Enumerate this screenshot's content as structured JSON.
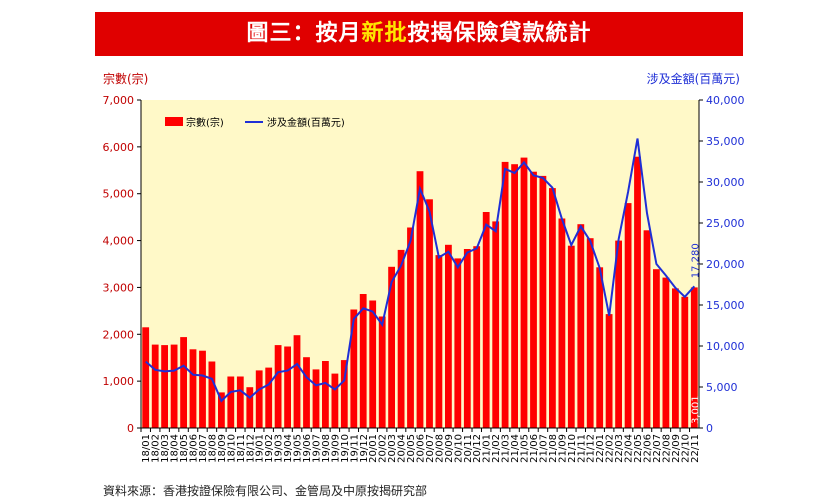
{
  "header": {
    "title_prefix": "圖三：按月",
    "title_highlight": "新批",
    "title_suffix": "按揭保險貸款統計"
  },
  "source": "資料來源：香港按證保險有限公司、金管局及中原按揭研究部",
  "colors": {
    "banner": "#e00000",
    "highlight": "#ffe600",
    "plot_bg": "#fff9c8",
    "bar": "#ff0000",
    "line": "#1f2fd6",
    "left_axis_text": "#c00000",
    "right_axis_text": "#1f2fd6"
  },
  "chart_data": {
    "type": "bar",
    "ylabel": "宗數(宗)",
    "y2label": "涉及金額(百萬元)",
    "ylim": [
      0,
      7000
    ],
    "y2lim": [
      0,
      40000
    ],
    "yticks": [
      "0",
      "1,000",
      "2,000",
      "3,000",
      "4,000",
      "5,000",
      "6,000",
      "7,000"
    ],
    "y2ticks": [
      "0",
      "5,000",
      "10,000",
      "15,000",
      "20,000",
      "25,000",
      "30,000",
      "35,000",
      "40,000"
    ],
    "legend_position": "top-left",
    "grid": false,
    "categories": [
      "18/01",
      "18/02",
      "18/03",
      "18/04",
      "18/05",
      "18/06",
      "18/07",
      "18/08",
      "18/09",
      "18/10",
      "18/11",
      "18/12",
      "19/01",
      "19/02",
      "19/03",
      "19/04",
      "19/05",
      "19/06",
      "19/07",
      "19/08",
      "19/09",
      "19/10",
      "19/11",
      "19/12",
      "20/01",
      "20/02",
      "20/03",
      "20/04",
      "20/05",
      "20/06",
      "20/07",
      "20/08",
      "20/09",
      "20/10",
      "20/11",
      "20/12",
      "21/01",
      "21/02",
      "21/03",
      "21/04",
      "21/05",
      "21/06",
      "21/07",
      "21/08",
      "21/09",
      "21/10",
      "21/11",
      "21/12",
      "22/01",
      "22/02",
      "22/03",
      "22/04",
      "22/05",
      "22/06",
      "22/07",
      "22/08",
      "22/09",
      "22/10",
      "22/11"
    ],
    "series": [
      {
        "name": "宗數(宗)",
        "type": "bar",
        "axis": "left",
        "values": [
          2150,
          1780,
          1770,
          1780,
          1940,
          1680,
          1650,
          1420,
          760,
          1100,
          1100,
          870,
          1230,
          1290,
          1770,
          1740,
          1980,
          1510,
          1250,
          1430,
          1160,
          1450,
          2530,
          2860,
          2720,
          2380,
          3440,
          3800,
          4280,
          5480,
          4880,
          3690,
          3910,
          3620,
          3820,
          3880,
          4610,
          4410,
          5680,
          5630,
          5770,
          5470,
          5380,
          5120,
          4470,
          3890,
          4350,
          4050,
          3430,
          2430,
          4000,
          4800,
          5790,
          4220,
          3390,
          3210,
          2980,
          2800,
          3001
        ]
      },
      {
        "name": "涉及金額(百萬元)",
        "type": "line",
        "axis": "right",
        "values": [
          8100,
          7100,
          6900,
          7000,
          7600,
          6500,
          6400,
          6000,
          3300,
          4400,
          4600,
          3700,
          4700,
          5300,
          6800,
          7000,
          7800,
          6200,
          5200,
          5500,
          4700,
          5800,
          13300,
          14600,
          14200,
          12600,
          17800,
          19800,
          22800,
          29200,
          26400,
          20800,
          21500,
          19600,
          21400,
          21900,
          24800,
          24000,
          31600,
          31100,
          32400,
          30800,
          30500,
          29300,
          25500,
          22300,
          24600,
          22800,
          19500,
          13700,
          23000,
          28800,
          35300,
          26200,
          20000,
          18600,
          17100,
          16000,
          17280
        ]
      }
    ],
    "annotations": [
      "3,001",
      "17,280"
    ]
  }
}
